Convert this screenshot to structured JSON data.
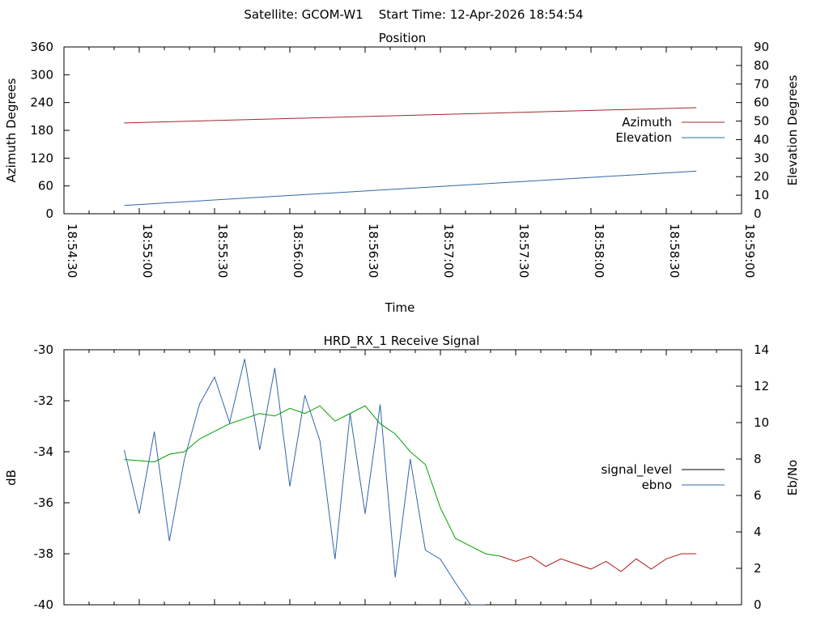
{
  "page": {
    "header": "Satellite: GCOM-W1    Start Time: 12-Apr-2026 18:54:54"
  },
  "colors": {
    "azimuth": "#a0282d",
    "elevation": "#2f68a6",
    "signal_level_legend": "#000000",
    "signal_level_green": "#00a000",
    "signal_level_red": "#b01818",
    "ebno": "#2f68a6",
    "axis": "#000000"
  },
  "chart_data": [
    {
      "type": "line",
      "title": "Position",
      "xlabel": "Time",
      "ylabel": "Azimuth Degrees",
      "y2label": "Elevation Degrees",
      "x_ticks": [
        "18:54:30",
        "18:55:00",
        "18:55:30",
        "18:56:00",
        "18:56:30",
        "18:57:00",
        "18:57:30",
        "18:58:00",
        "18:58:30",
        "18:59:00"
      ],
      "xlim": [
        "18:54:30",
        "18:59:00"
      ],
      "ylim": [
        0,
        360
      ],
      "y_ticks": [
        0,
        60,
        120,
        180,
        240,
        300,
        360
      ],
      "y2lim": [
        0,
        90
      ],
      "y2_ticks": [
        0,
        10,
        20,
        30,
        40,
        50,
        60,
        70,
        80,
        90
      ],
      "legend": "right",
      "series": [
        {
          "name": "Azimuth",
          "axis": "y",
          "x": [
            "18:54:54",
            "18:58:42"
          ],
          "values": [
            196,
            229
          ]
        },
        {
          "name": "Elevation",
          "axis": "y2",
          "x": [
            "18:54:54",
            "18:58:42"
          ],
          "values": [
            4.5,
            23
          ]
        }
      ]
    },
    {
      "type": "line",
      "title": "HRD_RX_1 Receive Signal",
      "ylabel": "dB",
      "y2label": "Eb/No",
      "xlim": [
        "18:54:30",
        "18:59:00"
      ],
      "ylim": [
        -40,
        -30
      ],
      "y_ticks": [
        -40,
        -38,
        -36,
        -34,
        -32,
        -30
      ],
      "y2lim": [
        0,
        14
      ],
      "y2_ticks": [
        0,
        2,
        4,
        6,
        8,
        10,
        12,
        14
      ],
      "legend": "right",
      "series": [
        {
          "name": "signal_level",
          "axis": "y",
          "x": [
            "18:54:54",
            "18:55:06",
            "18:55:12",
            "18:55:18",
            "18:55:24",
            "18:55:30",
            "18:55:36",
            "18:55:42",
            "18:55:48",
            "18:55:54",
            "18:56:00",
            "18:56:06",
            "18:56:12",
            "18:56:18",
            "18:56:24",
            "18:56:30",
            "18:56:36",
            "18:56:42",
            "18:56:48",
            "18:56:54",
            "18:57:00",
            "18:57:06",
            "18:57:12",
            "18:57:18",
            "18:57:24",
            "18:57:30",
            "18:57:36",
            "18:57:42",
            "18:57:48",
            "18:57:54",
            "18:58:00",
            "18:58:06",
            "18:58:12",
            "18:58:18",
            "18:58:24",
            "18:58:30",
            "18:58:36",
            "18:58:42"
          ],
          "values": [
            -34.3,
            -34.4,
            -34.1,
            -34.0,
            -33.5,
            -33.2,
            -32.9,
            -32.7,
            -32.5,
            -32.6,
            -32.3,
            -32.5,
            -32.2,
            -32.8,
            -32.5,
            -32.2,
            -32.9,
            -33.3,
            -34.0,
            -34.5,
            -36.2,
            -37.4,
            -37.7,
            -38.0,
            -38.1,
            -38.3,
            -38.1,
            -38.5,
            -38.2,
            -38.4,
            -38.6,
            -38.3,
            -38.7,
            -38.2,
            -38.6,
            -38.2,
            -38.0,
            -38.0
          ]
        },
        {
          "name": "ebno",
          "axis": "y2",
          "x": [
            "18:54:54",
            "18:55:00",
            "18:55:06",
            "18:55:12",
            "18:55:18",
            "18:55:24",
            "18:55:30",
            "18:55:36",
            "18:55:42",
            "18:55:48",
            "18:55:54",
            "18:56:00",
            "18:56:06",
            "18:56:12",
            "18:56:18",
            "18:56:24",
            "18:56:30",
            "18:56:36",
            "18:56:42",
            "18:56:48",
            "18:56:54",
            "18:57:00",
            "18:57:06",
            "18:57:12",
            "18:57:18"
          ],
          "values": [
            8.5,
            5.0,
            9.5,
            3.5,
            8.0,
            11.0,
            12.5,
            10.0,
            13.5,
            8.5,
            13.0,
            6.5,
            11.5,
            9.0,
            2.5,
            10.5,
            5.0,
            11.0,
            1.5,
            8.0,
            3.0,
            2.5,
            1.2,
            0.0,
            0.0
          ]
        }
      ]
    }
  ]
}
